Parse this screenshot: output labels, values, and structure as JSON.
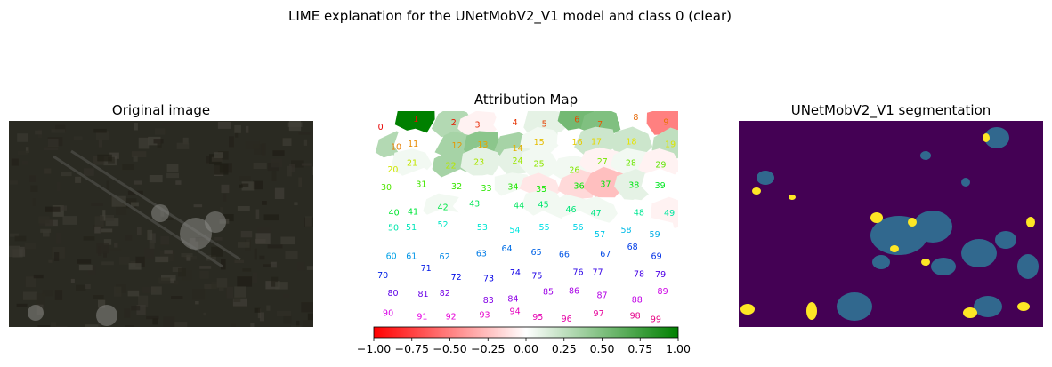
{
  "figure": {
    "title": "LIME explanation for the UNetMobV2_V1 model and class 0 (clear)"
  },
  "panels": {
    "original": {
      "title": "Original image"
    },
    "attribution": {
      "title": "Attribution Map"
    },
    "segmentation": {
      "title": "UNetMobV2_V1 segmentation"
    }
  },
  "colors": {
    "positive": "#008000",
    "negative": "#ff0000",
    "neutral": "#ffffff",
    "seg_background": "#440154",
    "seg_cloud": "#31688e",
    "seg_thin_cloud": "#fde725",
    "satellite_base": "#2a2a22"
  },
  "chart_data": [
    {
      "type": "heatmap",
      "title": "Attribution Map",
      "colorbar": {
        "range": [
          -1.0,
          1.0
        ],
        "ticks": [
          -1.0,
          -0.75,
          -0.5,
          -0.25,
          0.0,
          0.25,
          0.5,
          0.75,
          1.0
        ],
        "tick_labels": [
          "−1.00",
          "−0.75",
          "−0.50",
          "−0.25",
          "0.00",
          "0.25",
          "0.50",
          "0.75",
          "1.00"
        ],
        "colormap": [
          "#ff0000",
          "#ffffff",
          "#008000"
        ]
      },
      "segments": [
        {
          "id": 0,
          "value": 0.0
        },
        {
          "id": 1,
          "value": 1.0
        },
        {
          "id": 2,
          "value": 0.3
        },
        {
          "id": 3,
          "value": -0.05
        },
        {
          "id": 4,
          "value": 0.0
        },
        {
          "id": 5,
          "value": 0.1
        },
        {
          "id": 6,
          "value": 0.55
        },
        {
          "id": 7,
          "value": 0.5
        },
        {
          "id": 8,
          "value": 0.0
        },
        {
          "id": 9,
          "value": -0.5
        },
        {
          "id": 10,
          "value": 0.3
        },
        {
          "id": 11,
          "value": 0.0
        },
        {
          "id": 12,
          "value": 0.35
        },
        {
          "id": 13,
          "value": 0.45
        },
        {
          "id": 14,
          "value": 0.35
        },
        {
          "id": 15,
          "value": 0.05
        },
        {
          "id": 16,
          "value": 0.0
        },
        {
          "id": 17,
          "value": 0.2
        },
        {
          "id": 18,
          "value": 0.2
        },
        {
          "id": 19,
          "value": 0.25
        },
        {
          "id": 20,
          "value": 0.0
        },
        {
          "id": 21,
          "value": 0.05
        },
        {
          "id": 22,
          "value": 0.35
        },
        {
          "id": 23,
          "value": 0.1
        },
        {
          "id": 24,
          "value": 0.1
        },
        {
          "id": 25,
          "value": 0.05
        },
        {
          "id": 26,
          "value": 0.05
        },
        {
          "id": 27,
          "value": -0.05
        },
        {
          "id": 28,
          "value": 0.05
        },
        {
          "id": 29,
          "value": -0.05
        },
        {
          "id": 30,
          "value": 0.0
        },
        {
          "id": 31,
          "value": 0.0
        },
        {
          "id": 32,
          "value": 0.0
        },
        {
          "id": 33,
          "value": 0.0
        },
        {
          "id": 34,
          "value": 0.05
        },
        {
          "id": 35,
          "value": -0.1
        },
        {
          "id": 36,
          "value": -0.15
        },
        {
          "id": 37,
          "value": -0.25
        },
        {
          "id": 38,
          "value": 0.1
        },
        {
          "id": 39,
          "value": 0.0
        },
        {
          "id": 40,
          "value": 0.0
        },
        {
          "id": 41,
          "value": 0.0
        },
        {
          "id": 42,
          "value": 0.05
        },
        {
          "id": 43,
          "value": 0.0
        },
        {
          "id": 44,
          "value": 0.0
        },
        {
          "id": 45,
          "value": 0.05
        },
        {
          "id": 46,
          "value": 0.05
        },
        {
          "id": 47,
          "value": 0.05
        },
        {
          "id": 48,
          "value": 0.0
        },
        {
          "id": 49,
          "value": -0.05
        },
        {
          "id": 50,
          "value": 0.0
        },
        {
          "id": 51,
          "value": 0.0
        },
        {
          "id": 52,
          "value": 0.0
        },
        {
          "id": 53,
          "value": 0.0
        },
        {
          "id": 54,
          "value": 0.0
        },
        {
          "id": 55,
          "value": 0.0
        },
        {
          "id": 56,
          "value": 0.0
        },
        {
          "id": 57,
          "value": 0.0
        },
        {
          "id": 58,
          "value": 0.0
        },
        {
          "id": 59,
          "value": 0.0
        },
        {
          "id": 60,
          "value": 0.0
        },
        {
          "id": 61,
          "value": 0.0
        },
        {
          "id": 62,
          "value": 0.0
        },
        {
          "id": 63,
          "value": 0.0
        },
        {
          "id": 64,
          "value": 0.0
        },
        {
          "id": 65,
          "value": 0.0
        },
        {
          "id": 66,
          "value": 0.0
        },
        {
          "id": 67,
          "value": 0.0
        },
        {
          "id": 68,
          "value": 0.0
        },
        {
          "id": 69,
          "value": 0.0
        },
        {
          "id": 70,
          "value": 0.0
        },
        {
          "id": 71,
          "value": 0.0
        },
        {
          "id": 72,
          "value": 0.0
        },
        {
          "id": 73,
          "value": 0.0
        },
        {
          "id": 74,
          "value": 0.0
        },
        {
          "id": 75,
          "value": 0.0
        },
        {
          "id": 76,
          "value": 0.0
        },
        {
          "id": 77,
          "value": 0.0
        },
        {
          "id": 78,
          "value": 0.0
        },
        {
          "id": 79,
          "value": 0.0
        },
        {
          "id": 80,
          "value": 0.0
        },
        {
          "id": 81,
          "value": 0.0
        },
        {
          "id": 82,
          "value": 0.0
        },
        {
          "id": 83,
          "value": 0.0
        },
        {
          "id": 84,
          "value": 0.0
        },
        {
          "id": 85,
          "value": 0.0
        },
        {
          "id": 86,
          "value": 0.0
        },
        {
          "id": 87,
          "value": 0.0
        },
        {
          "id": 88,
          "value": 0.0
        },
        {
          "id": 89,
          "value": 0.0
        },
        {
          "id": 90,
          "value": 0.0
        },
        {
          "id": 91,
          "value": 0.0
        },
        {
          "id": 92,
          "value": 0.0
        },
        {
          "id": 93,
          "value": 0.0
        },
        {
          "id": 94,
          "value": 0.0
        },
        {
          "id": 95,
          "value": 0.0
        },
        {
          "id": 96,
          "value": 0.0
        },
        {
          "id": 97,
          "value": 0.0
        },
        {
          "id": 98,
          "value": 0.0
        },
        {
          "id": 99,
          "value": 0.0
        }
      ]
    }
  ]
}
